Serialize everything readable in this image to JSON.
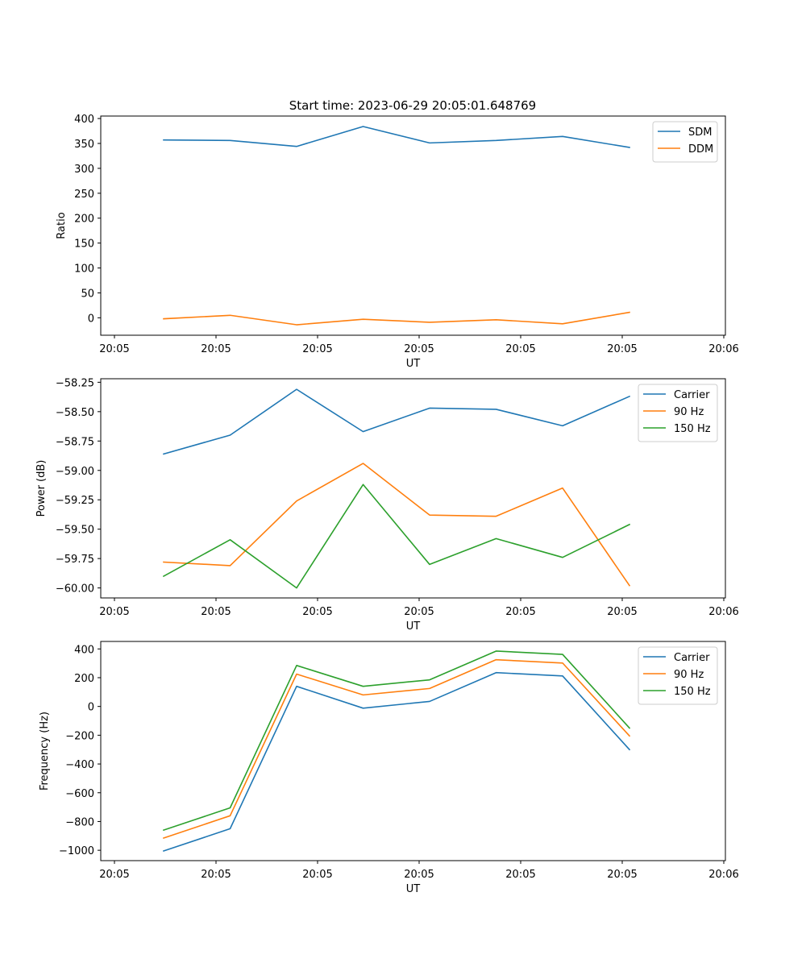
{
  "title": "Start time: 2023-06-29 20:05:01.648769",
  "colors": {
    "blue": "#1f77b4",
    "orange": "#ff7f0e",
    "green": "#2ca02c"
  },
  "chart_data": [
    {
      "type": "line",
      "title": "Start time: 2023-06-29 20:05:01.648769",
      "xlabel": "UT",
      "ylabel": "Ratio",
      "x_tick_labels": [
        "20:05",
        "20:05",
        "20:05",
        "20:05",
        "20:05",
        "20:05",
        "20:06"
      ],
      "y_ticks": [
        0,
        50,
        100,
        150,
        200,
        250,
        300,
        350,
        400
      ],
      "ylim": [
        -35,
        405
      ],
      "legend_position": "top-right",
      "grid": false,
      "series": [
        {
          "name": "SDM",
          "color": "#1f77b4",
          "values": [
            357,
            356,
            344,
            384,
            351,
            356,
            364,
            342
          ]
        },
        {
          "name": "DDM",
          "color": "#ff7f0e",
          "values": [
            -2,
            5,
            -14,
            -3,
            -9,
            -4,
            -12,
            11
          ]
        }
      ]
    },
    {
      "type": "line",
      "title": "",
      "xlabel": "UT",
      "ylabel": "Power (dB)",
      "x_tick_labels": [
        "20:05",
        "20:05",
        "20:05",
        "20:05",
        "20:05",
        "20:05",
        "20:06"
      ],
      "y_ticks": [
        -60.0,
        -59.75,
        -59.5,
        -59.25,
        -59.0,
        -58.75,
        -58.5,
        -58.25
      ],
      "y_tick_labels": [
        "−60.00",
        "−59.75",
        "−59.50",
        "−59.25",
        "−59.00",
        "−58.75",
        "−58.50",
        "−58.25"
      ],
      "ylim": [
        -60.085,
        -58.22
      ],
      "legend_position": "top-right",
      "grid": false,
      "series": [
        {
          "name": "Carrier",
          "color": "#1f77b4",
          "values": [
            -58.86,
            -58.7,
            -58.31,
            -58.67,
            -58.47,
            -58.48,
            -58.62,
            -58.37
          ]
        },
        {
          "name": "90 Hz",
          "color": "#ff7f0e",
          "values": [
            -59.78,
            -59.81,
            -59.26,
            -58.94,
            -59.38,
            -59.39,
            -59.15,
            -59.98
          ]
        },
        {
          "name": "150 Hz",
          "color": "#2ca02c",
          "values": [
            -59.9,
            -59.59,
            -60.0,
            -59.12,
            -59.8,
            -59.58,
            -59.74,
            -59.46
          ]
        }
      ]
    },
    {
      "type": "line",
      "title": "",
      "xlabel": "UT",
      "ylabel": "Frequency (Hz)",
      "x_tick_labels": [
        "20:05",
        "20:05",
        "20:05",
        "20:05",
        "20:05",
        "20:05",
        "20:06"
      ],
      "y_ticks": [
        -1000,
        -800,
        -600,
        -400,
        -200,
        0,
        200,
        400
      ],
      "y_tick_labels": [
        "−1000",
        "−800",
        "−600",
        "−400",
        "−200",
        "0",
        "200",
        "400"
      ],
      "ylim": [
        -1072,
        452
      ],
      "legend_position": "top-right",
      "grid": false,
      "series": [
        {
          "name": "Carrier",
          "color": "#1f77b4",
          "values": [
            -1005,
            -850,
            140,
            -12,
            35,
            235,
            212,
            -300
          ]
        },
        {
          "name": "90 Hz",
          "color": "#ff7f0e",
          "values": [
            -915,
            -760,
            225,
            80,
            125,
            325,
            302,
            -205
          ]
        },
        {
          "name": "150 Hz",
          "color": "#2ca02c",
          "values": [
            -860,
            -705,
            285,
            140,
            185,
            385,
            362,
            -150
          ]
        }
      ]
    }
  ]
}
